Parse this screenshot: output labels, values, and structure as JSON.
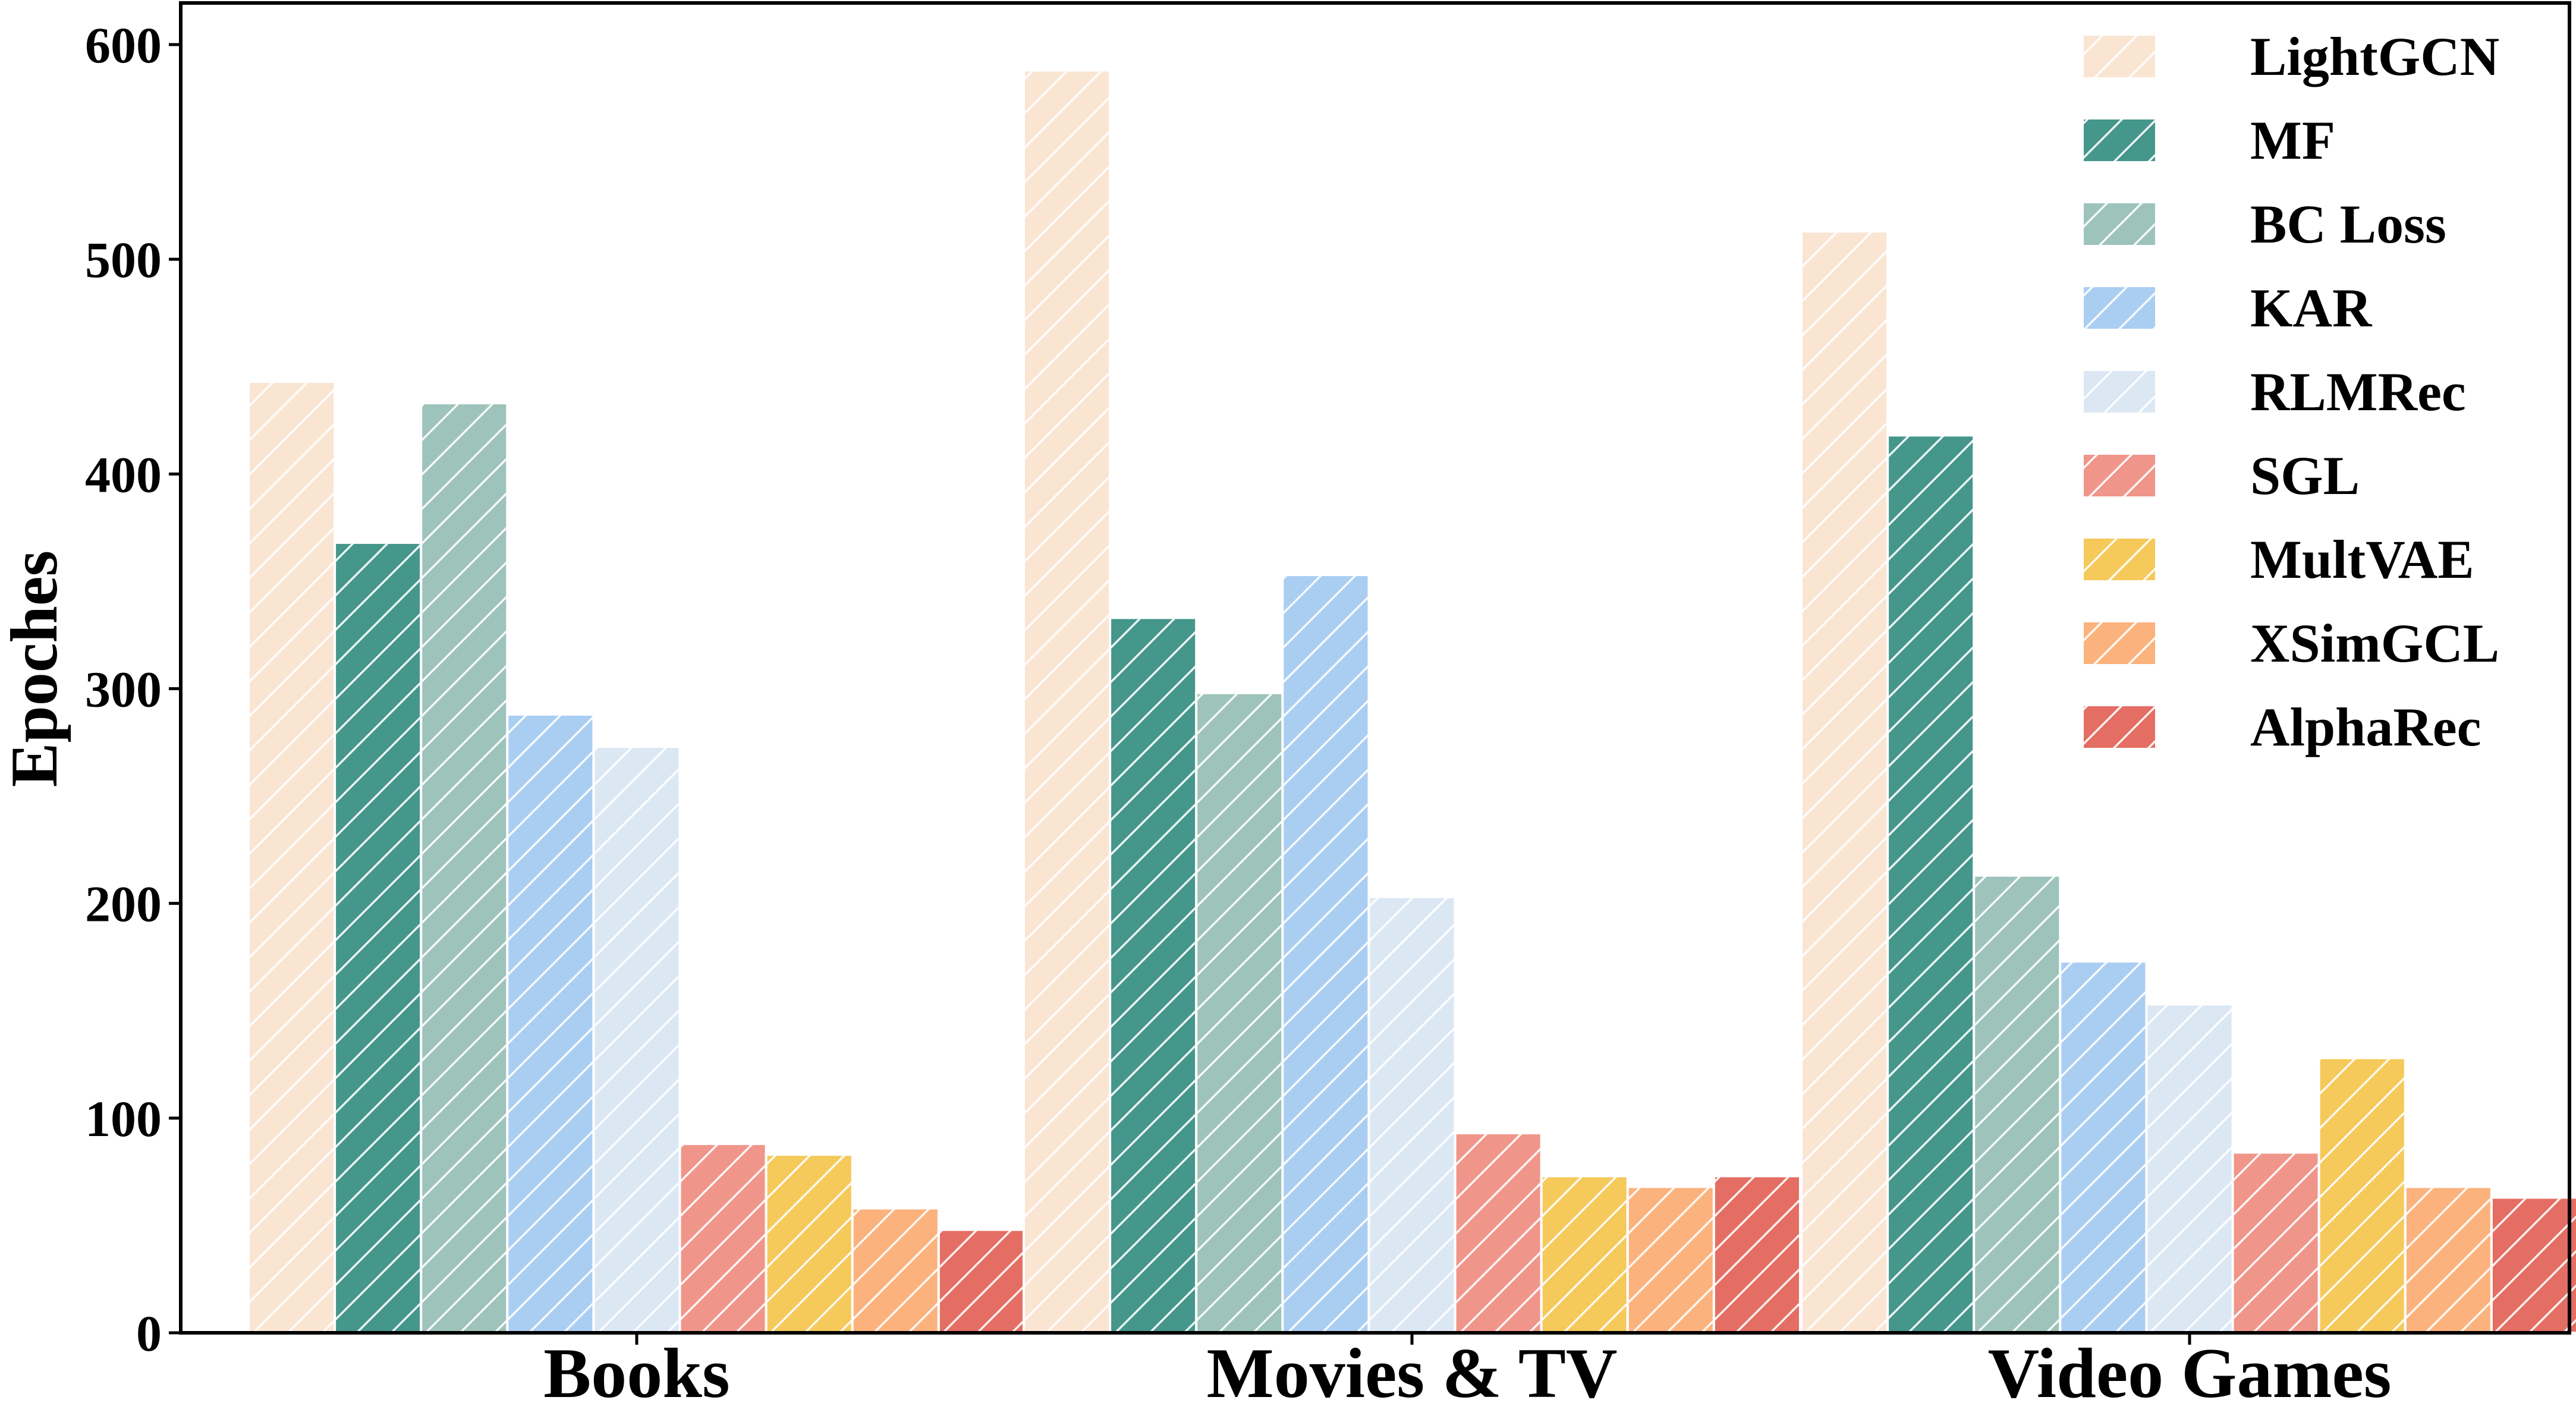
{
  "chart_data": {
    "type": "bar",
    "categories": [
      "Books",
      "Movies & TV",
      "Video Games"
    ],
    "ylabel": "Epoches",
    "xlabel": "",
    "ylim": [
      0,
      620
    ],
    "yticks": [
      0,
      100,
      200,
      300,
      400,
      500,
      600
    ],
    "legend_position": "top-right",
    "grid": false,
    "hatch": "diagonal",
    "series": [
      {
        "name": "LightGCN",
        "color": "#FAE5D3",
        "values": [
          443,
          588,
          513
        ]
      },
      {
        "name": "MF",
        "color": "#45968B",
        "values": [
          368,
          333,
          418
        ]
      },
      {
        "name": "BC Loss",
        "color": "#9DC3BA",
        "values": [
          433,
          298,
          213
        ]
      },
      {
        "name": "KAR",
        "color": "#AACDF2",
        "values": [
          288,
          353,
          173
        ]
      },
      {
        "name": "RLMRec",
        "color": "#DCE7F4",
        "values": [
          273,
          203,
          153
        ]
      },
      {
        "name": "SGL",
        "color": "#F0958A",
        "values": [
          88,
          93,
          84
        ]
      },
      {
        "name": "MultVAE",
        "color": "#F5C95A",
        "values": [
          83,
          73,
          128
        ]
      },
      {
        "name": "XSimGCL",
        "color": "#FBB27D",
        "values": [
          58,
          68,
          68
        ]
      },
      {
        "name": "AlphaRec",
        "color": "#E46E63",
        "values": [
          48,
          73,
          63
        ]
      }
    ]
  }
}
